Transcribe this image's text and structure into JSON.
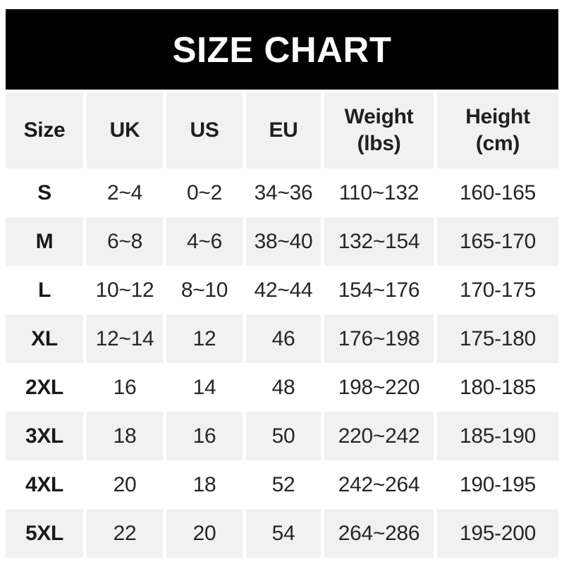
{
  "banner": {
    "title": "SIZE CHART"
  },
  "chart_data": {
    "type": "table",
    "title": "SIZE CHART",
    "columns": [
      "Size",
      "UK",
      "US",
      "EU",
      "Weight\n(lbs)",
      "Height\n(cm)"
    ],
    "rows": [
      [
        "S",
        "2~4",
        "0~2",
        "34~36",
        "110~132",
        "160-165"
      ],
      [
        "M",
        "6~8",
        "4~6",
        "38~40",
        "132~154",
        "165-170"
      ],
      [
        "L",
        "10~12",
        "8~10",
        "42~44",
        "154~176",
        "170-175"
      ],
      [
        "XL",
        "12~14",
        "12",
        "46",
        "176~198",
        "175-180"
      ],
      [
        "2XL",
        "16",
        "14",
        "48",
        "198~220",
        "180-185"
      ],
      [
        "3XL",
        "18",
        "16",
        "50",
        "220~242",
        "185-190"
      ],
      [
        "4XL",
        "20",
        "18",
        "52",
        "242~264",
        "190-195"
      ],
      [
        "5XL",
        "22",
        "20",
        "54",
        "264~286",
        "195-200"
      ]
    ]
  },
  "colors": {
    "banner_bg": "#000000",
    "banner_text": "#ffffff",
    "row_shade_bg": "#f1f1f2",
    "text": "#262626"
  }
}
